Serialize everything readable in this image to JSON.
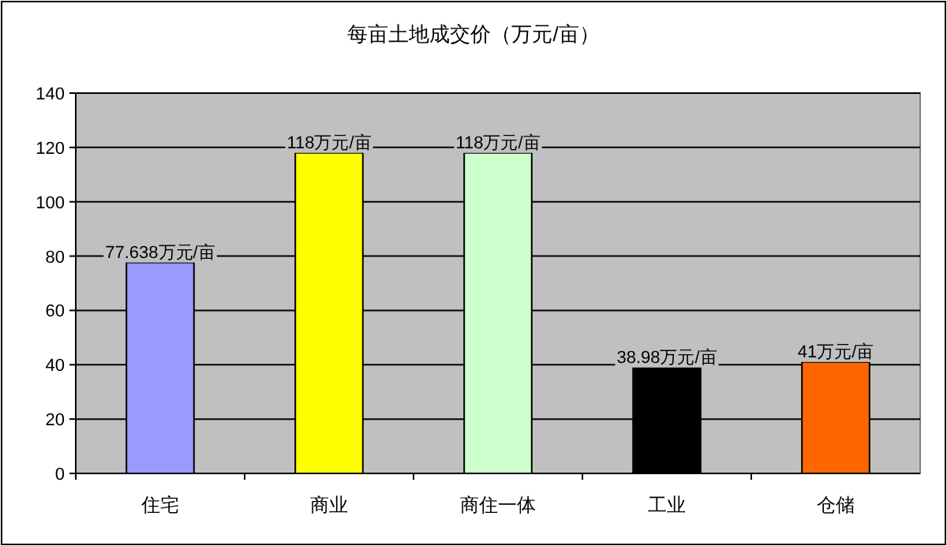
{
  "chart_data": {
    "type": "bar",
    "title": "每亩土地成交价（万元/亩）",
    "categories": [
      "住宅",
      "商业",
      "商住一体",
      "工业",
      "仓储"
    ],
    "values": [
      77.638,
      118,
      118,
      38.98,
      41
    ],
    "colors": [
      "#9999ff",
      "#ffff00",
      "#ccffcc",
      "#000000",
      "#ff6600"
    ],
    "value_labels": [
      "77.638万元/亩",
      "118万元/亩",
      "118万元/亩",
      "38.98万元/亩",
      "41万元/亩"
    ],
    "ylim": [
      0,
      140
    ],
    "yticks": [
      0,
      20,
      40,
      60,
      80,
      100,
      120,
      140
    ],
    "grid": "y"
  }
}
